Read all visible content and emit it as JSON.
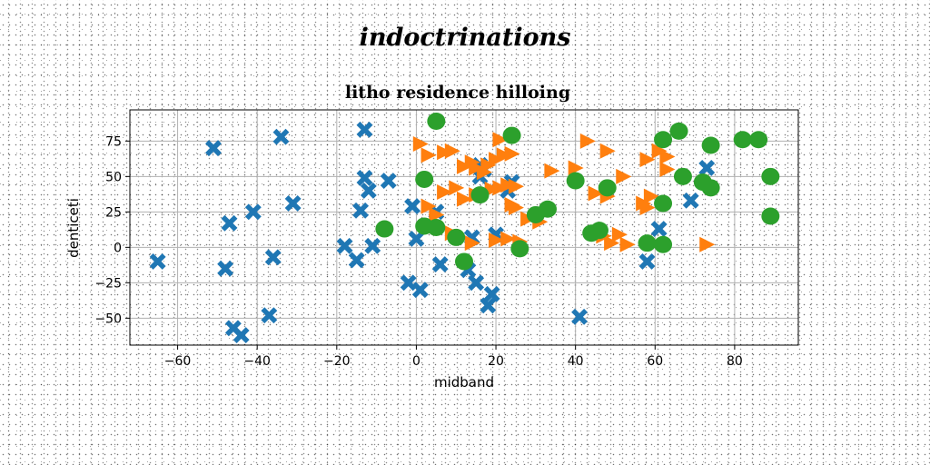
{
  "page_title": "indoctrinations",
  "chart_data": {
    "type": "scatter",
    "title": "litho residence hilloing",
    "xlabel": "midband",
    "ylabel": "denticeti",
    "xlim": [
      -72,
      96
    ],
    "ylim": [
      -69,
      97
    ],
    "xticks": [
      -60,
      -40,
      -20,
      0,
      20,
      40,
      60,
      80
    ],
    "yticks": [
      -50,
      -25,
      0,
      25,
      50,
      75
    ],
    "grid": true,
    "legend": "none",
    "colors": {
      "blue": "#1f77b4",
      "orange": "#ff7f0e",
      "green": "#2ca02c"
    },
    "series": [
      {
        "marker": "x",
        "color": "#1f77b4",
        "points": [
          [
            -51,
            70
          ],
          [
            -34,
            78
          ],
          [
            -13,
            83
          ],
          [
            -65,
            -10
          ],
          [
            -47,
            17
          ],
          [
            -48,
            -15
          ],
          [
            -46,
            -57
          ],
          [
            -44,
            -62
          ],
          [
            -41,
            25
          ],
          [
            -36,
            -7
          ],
          [
            -37,
            -48
          ],
          [
            -31,
            31
          ],
          [
            -18,
            1
          ],
          [
            -15,
            -9
          ],
          [
            -14,
            26
          ],
          [
            -13,
            49
          ],
          [
            -12,
            40
          ],
          [
            -11,
            1
          ],
          [
            -7,
            47
          ],
          [
            -2,
            -25
          ],
          [
            -1,
            29
          ],
          [
            0,
            6
          ],
          [
            1,
            -30
          ],
          [
            5,
            25
          ],
          [
            6,
            -12
          ],
          [
            13,
            -16
          ],
          [
            14,
            7
          ],
          [
            15,
            -25
          ],
          [
            16,
            58
          ],
          [
            16,
            50
          ],
          [
            17,
            55
          ],
          [
            18,
            -41
          ],
          [
            19,
            -33
          ],
          [
            20,
            9
          ],
          [
            23,
            40
          ],
          [
            24,
            46
          ],
          [
            41,
            -49
          ],
          [
            58,
            -10
          ],
          [
            61,
            13
          ],
          [
            69,
            33
          ],
          [
            73,
            56
          ]
        ]
      },
      {
        "marker": "triangle-right",
        "color": "#ff7f0e",
        "points": [
          [
            1,
            73
          ],
          [
            3,
            65
          ],
          [
            7,
            67
          ],
          [
            9,
            68
          ],
          [
            12,
            57
          ],
          [
            14,
            60
          ],
          [
            15,
            56
          ],
          [
            17,
            53
          ],
          [
            18,
            58
          ],
          [
            20,
            62
          ],
          [
            21,
            76
          ],
          [
            22,
            65
          ],
          [
            24,
            66
          ],
          [
            3,
            29
          ],
          [
            5,
            23
          ],
          [
            7,
            39
          ],
          [
            10,
            42
          ],
          [
            12,
            34
          ],
          [
            15,
            37
          ],
          [
            19,
            41
          ],
          [
            21,
            42
          ],
          [
            23,
            44
          ],
          [
            25,
            43
          ],
          [
            24,
            30
          ],
          [
            25,
            28
          ],
          [
            28,
            20
          ],
          [
            31,
            18
          ],
          [
            9,
            10
          ],
          [
            14,
            3
          ],
          [
            20,
            5
          ],
          [
            23,
            6
          ],
          [
            26,
            4
          ],
          [
            34,
            54
          ],
          [
            40,
            56
          ],
          [
            43,
            75
          ],
          [
            48,
            68
          ],
          [
            52,
            50
          ],
          [
            45,
            38
          ],
          [
            48,
            36
          ],
          [
            57,
            31
          ],
          [
            58,
            28
          ],
          [
            58,
            62
          ],
          [
            61,
            68
          ],
          [
            63,
            64
          ],
          [
            63,
            55
          ],
          [
            59,
            36
          ],
          [
            47,
            8
          ],
          [
            49,
            3
          ],
          [
            51,
            9
          ],
          [
            53,
            2
          ],
          [
            73,
            2
          ]
        ]
      },
      {
        "marker": "circle",
        "color": "#2ca02c",
        "points": [
          [
            5,
            89
          ],
          [
            2,
            48
          ],
          [
            16,
            37
          ],
          [
            -8,
            13
          ],
          [
            2,
            15
          ],
          [
            5,
            14
          ],
          [
            10,
            7
          ],
          [
            12,
            -10
          ],
          [
            24,
            79
          ],
          [
            30,
            23
          ],
          [
            33,
            27
          ],
          [
            26,
            -1
          ],
          [
            40,
            47
          ],
          [
            44,
            10
          ],
          [
            46,
            12
          ],
          [
            48,
            42
          ],
          [
            58,
            3
          ],
          [
            62,
            2
          ],
          [
            62,
            31
          ],
          [
            62,
            76
          ],
          [
            66,
            82
          ],
          [
            67,
            50
          ],
          [
            72,
            46
          ],
          [
            74,
            72
          ],
          [
            74,
            42
          ],
          [
            82,
            76
          ],
          [
            86,
            76
          ],
          [
            89,
            50
          ],
          [
            89,
            22
          ]
        ]
      }
    ]
  }
}
